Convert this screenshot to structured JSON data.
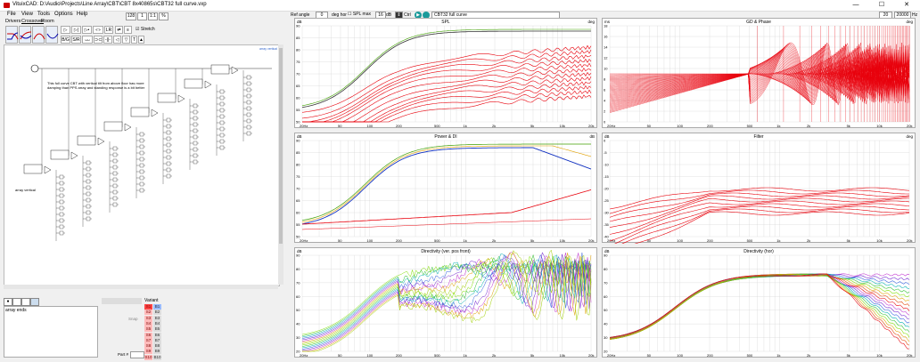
{
  "window": {
    "title": "VituixCAD: D:\\Audio\\Projects\\Line Array\\CBT\\CBT 8x40865s\\CBT32 full curve.vxp",
    "minimize": "—",
    "maximize": "☐",
    "close": "✕"
  },
  "menu": [
    "File",
    "View",
    "Tools",
    "Options",
    "Help"
  ],
  "top_controls": {
    "val1": "128",
    "val2": "1",
    "val3": "1:1",
    "val4": "%"
  },
  "tabs": [
    "Drivers",
    "Crossover",
    "Room"
  ],
  "toolbar": {
    "lr_label": "LR",
    "bg_label": "B/G",
    "sr_label": "S/R",
    "stretch_label": "Stretch"
  },
  "schematic": {
    "annotation": "This full curve CBT with vertical tilt from above floor has more damping than PPS array and standing response is a bit better",
    "array_label": "array vertical",
    "top_right_label": "array vertical",
    "block_label": "LPF"
  },
  "bottom": {
    "notes_label": "array ends",
    "variant_label": "Variant",
    "variants": [
      "S1",
      "S2",
      "S3",
      "S4",
      "S5",
      "S6",
      "S7",
      "S8",
      "S9",
      "S10"
    ],
    "variants_b": [
      "B1",
      "B2",
      "B3",
      "B4",
      "B5",
      "B6",
      "B7",
      "B8",
      "B9",
      "B10"
    ],
    "snap_label": "Snap",
    "part_label": "Part #"
  },
  "plot_toolbar": {
    "ref_angle_label": "Ref angle",
    "ref_angle_value": "0",
    "deg_hor": "deg hor",
    "splmax_label": "SPL max",
    "db_value": "16",
    "db_unit": "dB",
    "ctrl_label": "Ctrl",
    "curve_name": "CBT32 full curve",
    "right_value_1": "20",
    "right_value_2": "20000",
    "right_unit": "Hz"
  },
  "graphs": [
    {
      "title": "SPL",
      "left_unit": "dB",
      "right_unit": "deg",
      "ylabels": [
        "90",
        "85",
        "80",
        "75",
        "70",
        "65",
        "60",
        "55",
        "50"
      ],
      "xlabels": [
        "20Hz",
        "50",
        "100",
        "200",
        "500",
        "1k",
        "2k",
        "5k",
        "10k",
        "20k"
      ]
    },
    {
      "title": "GD & Phase",
      "left_unit": "ms",
      "right_unit": "deg",
      "ylabels": [
        "18",
        "16",
        "14",
        "12",
        "10",
        "8",
        "6",
        "4",
        "2",
        "0"
      ],
      "xlabels": [
        "20Hz",
        "50",
        "100",
        "200",
        "500",
        "1k",
        "2k",
        "5k",
        "10k",
        "20k"
      ]
    },
    {
      "title": "Power & DI",
      "left_unit": "dB",
      "right_unit": "dB",
      "ylabels": [
        "90",
        "85",
        "80",
        "75",
        "70",
        "65",
        "60",
        "55",
        "50"
      ],
      "xlabels": [
        "20Hz",
        "50",
        "100",
        "200",
        "500",
        "1k",
        "2k",
        "5k",
        "10k",
        "20k"
      ]
    },
    {
      "title": "Filter",
      "left_unit": "dB",
      "right_unit": "deg",
      "ylabels": [
        "0",
        "-5",
        "-10",
        "-15",
        "-20",
        "-25",
        "-30",
        "-35",
        "-40"
      ],
      "xlabels": [
        "20Hz",
        "50",
        "100",
        "200",
        "500",
        "1k",
        "2k",
        "5k",
        "10k",
        "20k"
      ]
    },
    {
      "title": "Directivity (ver. pos front)",
      "left_unit": "dB",
      "right_unit": "",
      "ylabels": [
        "90",
        "80",
        "70",
        "60",
        "50",
        "40",
        "30",
        "20"
      ],
      "xlabels": [
        "20Hz",
        "50",
        "100",
        "200",
        "500",
        "1k",
        "2k",
        "5k",
        "10k",
        "20k"
      ]
    },
    {
      "title": "Directivity (hor)",
      "left_unit": "dB",
      "right_unit": "",
      "ylabels": [
        "90",
        "80",
        "70",
        "60",
        "50",
        "40",
        "30",
        "20"
      ],
      "xlabels": [
        "20Hz",
        "50",
        "100",
        "200",
        "500",
        "1k",
        "2k",
        "5k",
        "10k",
        "20k"
      ]
    }
  ],
  "colors": {
    "red": "#e8000b",
    "green": "#40a000",
    "blue": "#1030c0",
    "grid": "#d8d8d8"
  }
}
